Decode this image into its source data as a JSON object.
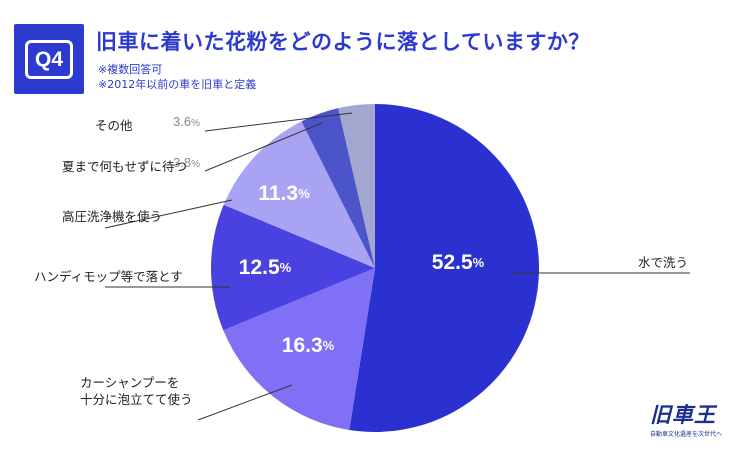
{
  "header": {
    "badge": "Q4",
    "title": "旧車に着いた花粉をどのように落としていますか？",
    "note1": "※複数回答可",
    "note2": "※2012年以前の車を旧車と定義"
  },
  "logo": {
    "main": "旧車王",
    "sub": "自動車文化遺産を次世代へ"
  },
  "chart_data": {
    "type": "pie",
    "title": "旧車に着いた花粉をどのように落としていますか？",
    "unit": "%",
    "categories": [
      "水で洗う",
      "カーシャンプーを十分に泡立てて使う",
      "ハンディモップ等で落とす",
      "高圧洗浄機を使う",
      "夏まで何もせずに待つ",
      "その他"
    ],
    "values": [
      52.5,
      16.3,
      12.5,
      11.3,
      3.8,
      3.6
    ],
    "value_labels": [
      "52.5",
      "16.3",
      "12.5",
      "11.3",
      "3.8",
      "3.6"
    ],
    "label_lines": [
      [
        "水で洗う"
      ],
      [
        "カーシャンプーを",
        "十分に泡立てて使う"
      ],
      [
        "ハンディモップ等で落とす"
      ],
      [
        "高圧洗浄機を使う"
      ],
      [
        "夏まで何もせずに待つ"
      ],
      [
        "その他"
      ]
    ],
    "colors": [
      "#2b31d1",
      "#7f70f5",
      "#4a42e0",
      "#a9a3f3",
      "#4b55c9",
      "#a3a7cf"
    ],
    "start_angle": "12 o'clock",
    "direction": "clockwise"
  }
}
